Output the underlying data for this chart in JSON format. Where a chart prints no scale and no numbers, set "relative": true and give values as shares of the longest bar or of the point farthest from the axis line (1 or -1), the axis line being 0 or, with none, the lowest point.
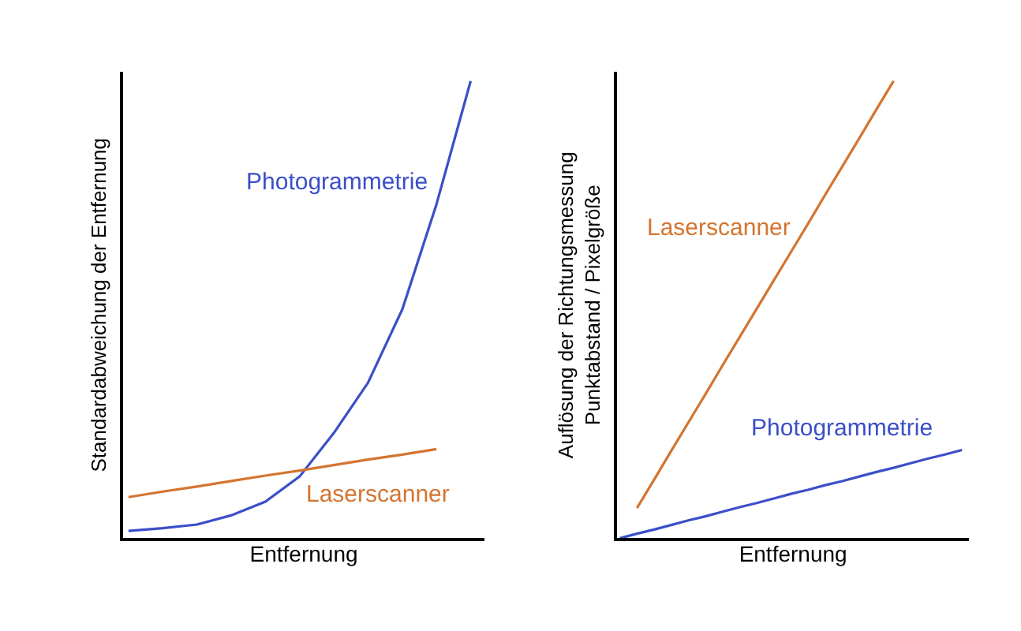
{
  "chart_data": [
    {
      "type": "line",
      "relative": true,
      "xlabel": "Entfernung",
      "ylabel": "Standardabweichung der Entfernung",
      "marker": "none",
      "line_style": "solid",
      "tick_labels": false,
      "categories": [
        null,
        null,
        null,
        null,
        null,
        null,
        null,
        null,
        null,
        null,
        null
      ],
      "series": [
        {
          "name": "Photogrammetrie",
          "color": "#3b4fc8",
          "values": [
            0.016,
            0.022,
            0.03,
            0.05,
            0.08,
            0.135,
            0.23,
            0.34,
            0.5,
            0.73,
            1.0
          ]
        },
        {
          "name": "Laserscanner",
          "color": "#d4742f",
          "values": [
            0.09,
            0.102,
            0.113,
            0.125,
            0.137,
            0.148,
            0.16,
            0.172,
            0.183,
            0.195,
            null
          ]
        }
      ]
    },
    {
      "type": "line",
      "relative": true,
      "xlabel": "Entfernung",
      "ylabel": "Auflösung der Richtungsmessung\nPunktabstand / Pixelgröße",
      "marker": "none",
      "line_style": "solid",
      "tick_labels": false,
      "categories": [
        null,
        null,
        null,
        null,
        null,
        null,
        null,
        null,
        null,
        null,
        null,
        null,
        null,
        null,
        null,
        null,
        null,
        null,
        null,
        null,
        null
      ],
      "series": [
        {
          "name": "Laserscanner",
          "color": "#d4742f",
          "values": [
            null,
            0.066,
            0.128,
            0.191,
            0.253,
            0.315,
            0.378,
            0.44,
            0.502,
            0.564,
            0.626,
            0.688,
            0.751,
            0.813,
            0.875,
            0.938,
            1.0,
            null,
            null,
            null,
            null
          ]
        },
        {
          "name": "Photogrammetrie",
          "color": "#3b4fc8",
          "values": [
            0.0,
            0.01,
            0.019,
            0.029,
            0.039,
            0.048,
            0.058,
            0.068,
            0.077,
            0.087,
            0.097,
            0.106,
            0.116,
            0.125,
            0.135,
            0.145,
            0.154,
            0.164,
            0.174,
            0.183,
            0.193
          ]
        }
      ]
    }
  ]
}
